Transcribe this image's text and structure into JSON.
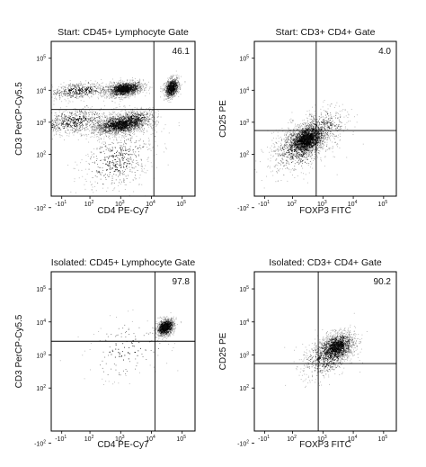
{
  "chart_data": [
    {
      "type": "scatter",
      "panel": "start-cd45",
      "title": "Start: CD45+ Lymphocyte Gate",
      "xlabel": "CD4 PE-Cy7",
      "ylabel": "CD3 PerCP-Cy5.5",
      "scale": "biexponential",
      "xlim": [
        -30,
        200000
      ],
      "ylim": [
        -30,
        200000
      ],
      "x_ticks": [
        {
          "base": "-10",
          "exp": "1",
          "v": -10
        },
        {
          "base": "10",
          "exp": "2",
          "v": 100
        },
        {
          "base": "10",
          "exp": "3",
          "v": 1000
        },
        {
          "base": "10",
          "exp": "4",
          "v": 10000
        },
        {
          "base": "10",
          "exp": "5",
          "v": 100000
        }
      ],
      "y_ticks": [
        {
          "base": "-10",
          "exp": "2",
          "v": -100
        },
        {
          "base": "10",
          "exp": "2",
          "v": 100
        },
        {
          "base": "10",
          "exp": "3",
          "v": 1000
        },
        {
          "base": "10",
          "exp": "4",
          "v": 10000
        },
        {
          "base": "10",
          "exp": "5",
          "v": 100000
        }
      ],
      "gate": {
        "x": 12000,
        "y": 2500
      },
      "quadrant_label": "46.1",
      "quadrant_label_corner": "top-right",
      "populations": [
        {
          "cx": 1300,
          "cy": 11000,
          "sx": 0.3,
          "sy": 0.14,
          "n": 1400
        },
        {
          "cx": 55,
          "cy": 10000,
          "sx": 0.55,
          "sy": 0.17,
          "n": 500
        },
        {
          "cx": 900,
          "cy": 850,
          "sx": 0.45,
          "sy": 0.2,
          "n": 1600
        },
        {
          "cx": 40,
          "cy": 1100,
          "sx": 0.55,
          "sy": 0.25,
          "n": 600
        },
        {
          "cx": 3000,
          "cy": 1300,
          "sx": 0.35,
          "sy": 0.2,
          "n": 350
        },
        {
          "cx": 45000,
          "cy": 12000,
          "sx": 0.12,
          "sy": 0.18,
          "n": 900
        },
        {
          "cx": 800,
          "cy": 80,
          "sx": 0.6,
          "sy": 0.6,
          "n": 500
        }
      ]
    },
    {
      "type": "scatter",
      "panel": "start-cd3cd4",
      "title": "Start: CD3+ CD4+ Gate",
      "xlabel": "FOXP3 FITC",
      "ylabel": "CD25 PE",
      "scale": "biexponential",
      "xlim": [
        -30,
        200000
      ],
      "ylim": [
        -30,
        200000
      ],
      "x_ticks": [
        {
          "base": "-10",
          "exp": "1",
          "v": -10
        },
        {
          "base": "10",
          "exp": "2",
          "v": 100
        },
        {
          "base": "10",
          "exp": "3",
          "v": 1000
        },
        {
          "base": "10",
          "exp": "4",
          "v": 10000
        },
        {
          "base": "10",
          "exp": "5",
          "v": 100000
        }
      ],
      "y_ticks": [
        {
          "base": "-10",
          "exp": "2",
          "v": -100
        },
        {
          "base": "10",
          "exp": "2",
          "v": 100
        },
        {
          "base": "10",
          "exp": "3",
          "v": 1000
        },
        {
          "base": "10",
          "exp": "4",
          "v": 10000
        },
        {
          "base": "10",
          "exp": "5",
          "v": 100000
        }
      ],
      "gate": {
        "x": 600,
        "y": 550
      },
      "quadrant_label": "4.0",
      "quadrant_label_corner": "top-right",
      "populations": [
        {
          "cx": 280,
          "cy": 300,
          "sx": 0.28,
          "sy": 0.26,
          "n": 2000
        },
        {
          "cx": 150,
          "cy": 150,
          "sx": 0.5,
          "sy": 0.45,
          "n": 700
        },
        {
          "cx": 900,
          "cy": 700,
          "sx": 0.45,
          "sy": 0.38,
          "n": 400
        }
      ]
    },
    {
      "type": "scatter",
      "panel": "isolated-cd45",
      "title": "Isolated: CD45+ Lymphocyte Gate",
      "xlabel": "CD4 PE-Cy7",
      "ylabel": "CD3 PerCP-Cy5.5",
      "scale": "biexponential",
      "xlim": [
        -30,
        200000
      ],
      "ylim": [
        -30,
        200000
      ],
      "x_ticks": [
        {
          "base": "-10",
          "exp": "1",
          "v": -10
        },
        {
          "base": "10",
          "exp": "2",
          "v": 100
        },
        {
          "base": "10",
          "exp": "3",
          "v": 1000
        },
        {
          "base": "10",
          "exp": "4",
          "v": 10000
        },
        {
          "base": "10",
          "exp": "5",
          "v": 100000
        }
      ],
      "y_ticks": [
        {
          "base": "-10",
          "exp": "2",
          "v": -100
        },
        {
          "base": "10",
          "exp": "2",
          "v": 100
        },
        {
          "base": "10",
          "exp": "3",
          "v": 1000
        },
        {
          "base": "10",
          "exp": "4",
          "v": 10000
        },
        {
          "base": "10",
          "exp": "5",
          "v": 100000
        }
      ],
      "gate": {
        "x": 13000,
        "y": 2600
      },
      "quadrant_label": "97.8",
      "quadrant_label_corner": "top-right",
      "populations": [
        {
          "cx": 28000,
          "cy": 7000,
          "sx": 0.14,
          "sy": 0.15,
          "n": 1200
        },
        {
          "cx": 1500,
          "cy": 1500,
          "sx": 0.7,
          "sy": 0.6,
          "n": 150
        }
      ]
    },
    {
      "type": "scatter",
      "panel": "isolated-cd3cd4",
      "title": "Isolated: CD3+ CD4+ Gate",
      "xlabel": "FOXP3 FITC",
      "ylabel": "CD25 PE",
      "scale": "biexponential",
      "xlim": [
        -30,
        200000
      ],
      "ylim": [
        -30,
        200000
      ],
      "x_ticks": [
        {
          "base": "-10",
          "exp": "1",
          "v": -10
        },
        {
          "base": "10",
          "exp": "2",
          "v": 100
        },
        {
          "base": "10",
          "exp": "3",
          "v": 1000
        },
        {
          "base": "10",
          "exp": "4",
          "v": 10000
        },
        {
          "base": "10",
          "exp": "5",
          "v": 100000
        }
      ],
      "y_ticks": [
        {
          "base": "-10",
          "exp": "2",
          "v": -100
        },
        {
          "base": "10",
          "exp": "2",
          "v": 100
        },
        {
          "base": "10",
          "exp": "3",
          "v": 1000
        },
        {
          "base": "10",
          "exp": "4",
          "v": 10000
        },
        {
          "base": "10",
          "exp": "5",
          "v": 100000
        }
      ],
      "gate": {
        "x": 700,
        "y": 550
      },
      "quadrant_label": "90.2",
      "quadrant_label_corner": "top-right",
      "populations": [
        {
          "cx": 2800,
          "cy": 1800,
          "sx": 0.3,
          "sy": 0.26,
          "n": 1500
        },
        {
          "cx": 1200,
          "cy": 800,
          "sx": 0.4,
          "sy": 0.4,
          "n": 500
        }
      ]
    }
  ]
}
